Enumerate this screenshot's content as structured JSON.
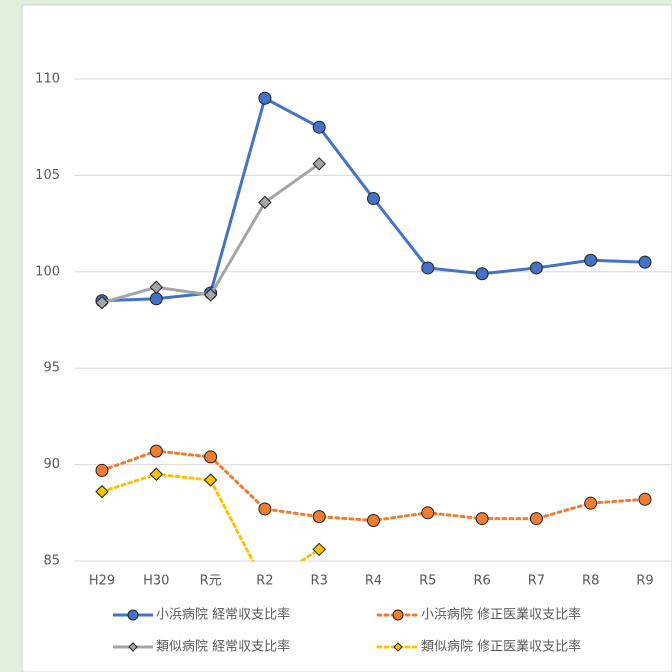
{
  "chart_data": {
    "type": "line",
    "categories": [
      "H29",
      "H30",
      "R元",
      "R2",
      "R3",
      "R4",
      "R5",
      "R6",
      "R7",
      "R8",
      "R9"
    ],
    "series": [
      {
        "name": "小浜病院 経常収支比率",
        "color": "#4472c4",
        "marker": "circle",
        "dash": "solid",
        "values": [
          98.5,
          98.6,
          98.9,
          109.0,
          107.5,
          103.8,
          100.2,
          99.9,
          100.2,
          100.6,
          100.5
        ]
      },
      {
        "name": "小浜病院 修正医業収支比率",
        "color": "#ed7d31",
        "marker": "circle",
        "dash": "dot",
        "values": [
          89.7,
          90.7,
          90.4,
          87.7,
          87.3,
          87.1,
          87.5,
          87.2,
          87.2,
          88.0,
          88.2
        ]
      },
      {
        "name": "類似病院 経常収支比率",
        "color": "#a5a5a5",
        "marker": "diamond",
        "dash": "solid",
        "values": [
          98.4,
          99.2,
          98.8,
          103.6,
          105.6,
          null,
          null,
          null,
          null,
          null,
          null
        ]
      },
      {
        "name": "類似病院 修正医業収支比率",
        "color": "#ffc000",
        "marker": "diamond",
        "dash": "dot",
        "values": [
          88.6,
          89.5,
          89.2,
          83.8,
          85.6,
          null,
          null,
          null,
          null,
          null,
          null
        ]
      }
    ],
    "ylim": [
      85,
      113
    ],
    "yticks": [
      85,
      90,
      95,
      100,
      105,
      110
    ],
    "grid": true
  }
}
